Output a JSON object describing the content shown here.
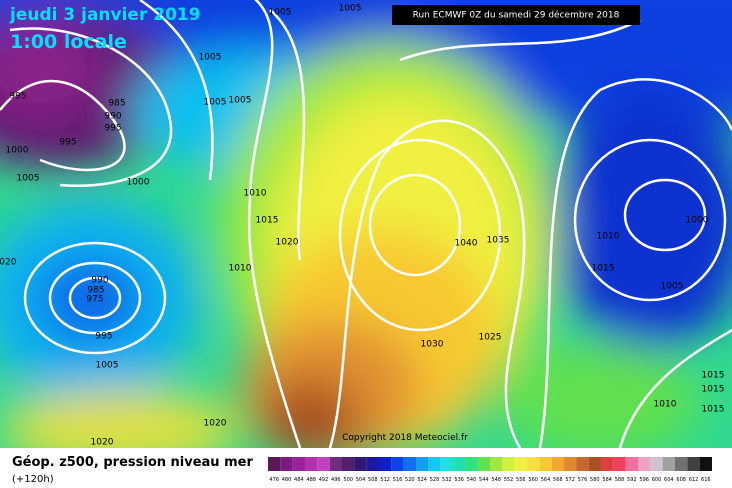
{
  "header": {
    "date": "jeudi 3 janvier 2019",
    "time": "1:00 locale",
    "run": "Run ECMWF 0Z du samedi 29 décembre 2018"
  },
  "map": {
    "isobar_labels": [
      "1005",
      "1005",
      "1005",
      "1005",
      "1005",
      "995",
      "985",
      "990",
      "995",
      "995",
      "1000",
      "1005",
      "1000",
      "1010",
      "1015",
      "1020",
      "1010",
      "990",
      "985",
      "975",
      "995",
      "1005",
      "1040",
      "1035",
      "1030",
      "1025",
      "1010",
      "1015",
      "1000",
      "1005",
      "1010",
      "1015",
      "1015",
      "1015",
      "1020",
      "1020",
      "1020"
    ],
    "copyright": "Copyright 2018 Meteociel.fr"
  },
  "footer": {
    "title": "Géop. z500, pression niveau mer",
    "lead": "(+120h)",
    "scale": [
      {
        "label": "476",
        "color": "#5a1a5a"
      },
      {
        "label": "480",
        "color": "#7a1a7a"
      },
      {
        "label": "484",
        "color": "#9a209a"
      },
      {
        "label": "488",
        "color": "#b030b0"
      },
      {
        "label": "492",
        "color": "#c040c0"
      },
      {
        "label": "496",
        "color": "#703080"
      },
      {
        "label": "500",
        "color": "#502070"
      },
      {
        "label": "504",
        "color": "#301870"
      },
      {
        "label": "508",
        "color": "#1818a0"
      },
      {
        "label": "512",
        "color": "#1020c8"
      },
      {
        "label": "516",
        "color": "#1040e8"
      },
      {
        "label": "520",
        "color": "#1070f0"
      },
      {
        "label": "524",
        "color": "#10a0f0"
      },
      {
        "label": "528",
        "color": "#10c8f0"
      },
      {
        "label": "532",
        "color": "#20e0e0"
      },
      {
        "label": "536",
        "color": "#20e0b0"
      },
      {
        "label": "540",
        "color": "#30e080"
      },
      {
        "label": "544",
        "color": "#60e050"
      },
      {
        "label": "548",
        "color": "#a0e840"
      },
      {
        "label": "552",
        "color": "#d0f040"
      },
      {
        "label": "556",
        "color": "#f0f040"
      },
      {
        "label": "560",
        "color": "#f8e040"
      },
      {
        "label": "564",
        "color": "#f8c830"
      },
      {
        "label": "568",
        "color": "#f0a830"
      },
      {
        "label": "572",
        "color": "#e08830"
      },
      {
        "label": "576",
        "color": "#c86830"
      },
      {
        "label": "580",
        "color": "#a85020"
      },
      {
        "label": "584",
        "color": "#e04040"
      },
      {
        "label": "588",
        "color": "#f04060"
      },
      {
        "label": "592",
        "color": "#f070a0"
      },
      {
        "label": "596",
        "color": "#f0a0c0"
      },
      {
        "label": "600",
        "color": "#d0c0d0"
      },
      {
        "label": "604",
        "color": "#a0a0a0"
      },
      {
        "label": "608",
        "color": "#707070"
      },
      {
        "label": "612",
        "color": "#404040"
      },
      {
        "label": "616",
        "color": "#101010"
      }
    ]
  }
}
